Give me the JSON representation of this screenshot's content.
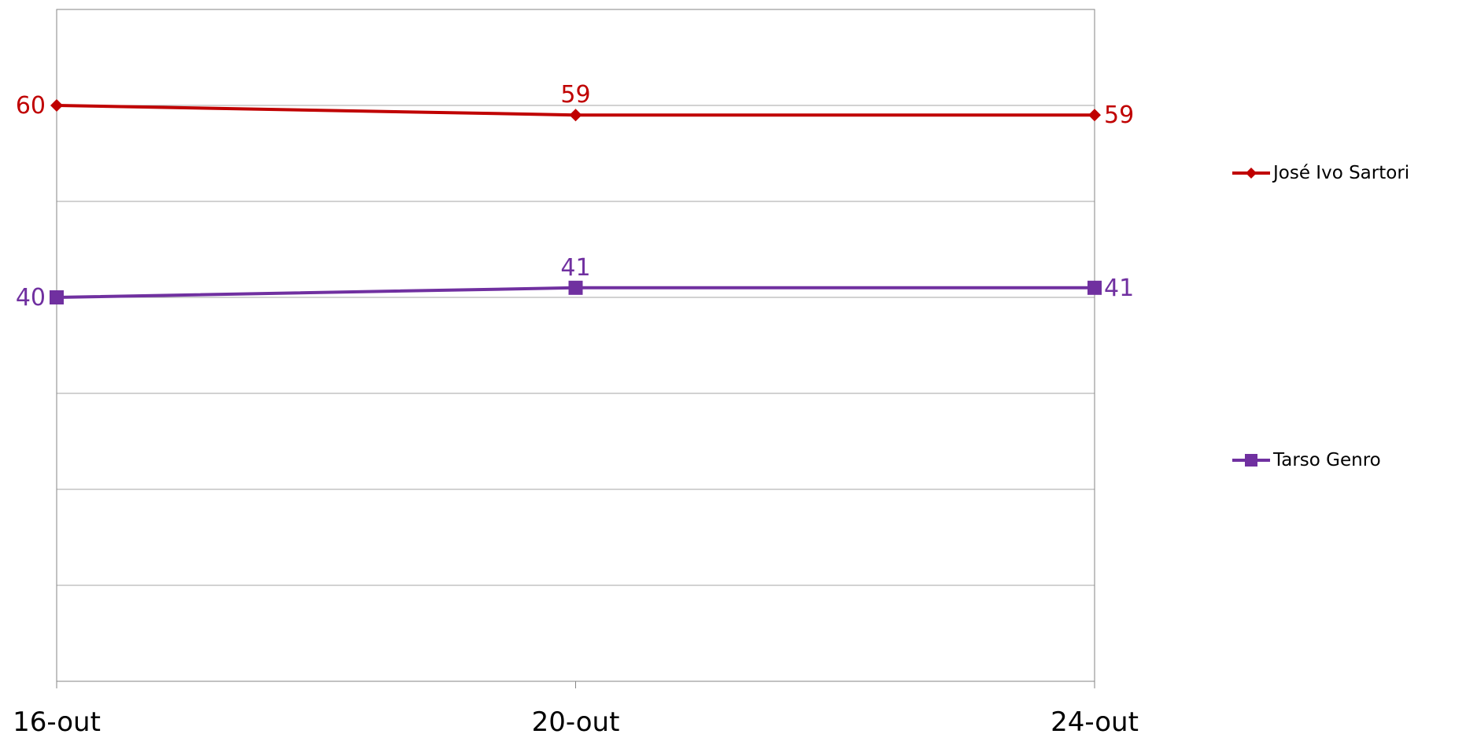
{
  "chart_data": {
    "type": "line",
    "categories": [
      "16-out",
      "20-out",
      "24-out"
    ],
    "ylim": [
      0,
      70
    ],
    "grid": true,
    "legend_position": "right",
    "series": [
      {
        "name": "José Ivo Sartori",
        "values": [
          60,
          59,
          59
        ],
        "labels": [
          "60",
          "59",
          "59"
        ],
        "color": "#C00000",
        "marker": "diamond"
      },
      {
        "name": "Tarso Genro",
        "values": [
          40,
          41,
          41
        ],
        "labels": [
          "40",
          "41",
          "41"
        ],
        "color": "#7030A0",
        "marker": "square"
      }
    ]
  }
}
